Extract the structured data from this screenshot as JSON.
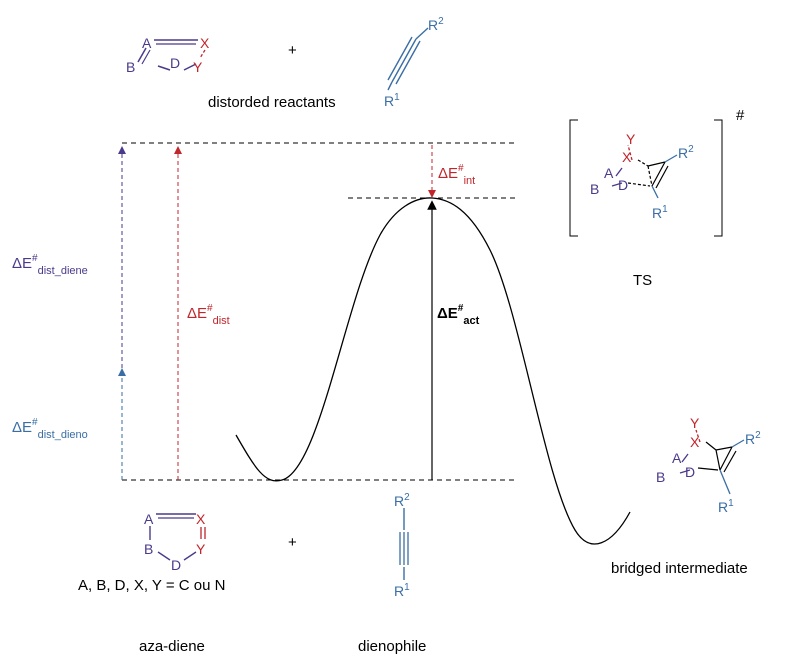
{
  "colors": {
    "purple": "#4b3a8c",
    "red": "#c0262c",
    "blue": "#3a6ea5",
    "black": "#000000"
  },
  "top": {
    "plus": "+",
    "caption": "distorded reactants",
    "diene_atoms": {
      "A": "A",
      "B": "B",
      "D": "D",
      "X": "X",
      "Y": "Y"
    },
    "dienophile_r2": "R",
    "dienophile_r2_sup": "2",
    "dienophile_r1": "R",
    "dienophile_r1_sup": "1"
  },
  "ts": {
    "hash": "#",
    "caption": "TS",
    "atoms": {
      "A": "A",
      "B": "B",
      "D": "D",
      "X": "X",
      "Y": "Y"
    },
    "r1": "R",
    "r1_sup": "1",
    "r2": "R",
    "r2_sup": "2"
  },
  "energies": {
    "dist_diene": {
      "base": "ΔE",
      "sup": "#",
      "sub": "dist_diene"
    },
    "dist_dieno": {
      "base": "ΔE",
      "sup": "#",
      "sub": "dist_dieno"
    },
    "dist": {
      "base": "ΔE",
      "sup": "#",
      "sub": "dist"
    },
    "int": {
      "base": "ΔE",
      "sup": "#",
      "sub": "int"
    },
    "act": {
      "base": "ΔE",
      "sup": "#",
      "sub": "act"
    }
  },
  "bottom": {
    "plus": "+",
    "formula": "A, B, D, X, Y = C ou N",
    "aza_diene_caption": "aza-diene",
    "dienophile_caption": "dienophile",
    "diene_atoms": {
      "A": "A",
      "B": "B",
      "D": "D",
      "X": "X",
      "Y": "Y"
    },
    "dienophile_r2": "R",
    "dienophile_r2_sup": "2",
    "dienophile_r1": "R",
    "dienophile_r1_sup": "1"
  },
  "intermediate": {
    "caption": "bridged intermediate",
    "atoms": {
      "A": "A",
      "B": "B",
      "D": "D",
      "X": "X",
      "Y": "Y"
    },
    "r1": "R",
    "r1_sup": "1",
    "r2": "R",
    "r2_sup": "2"
  }
}
